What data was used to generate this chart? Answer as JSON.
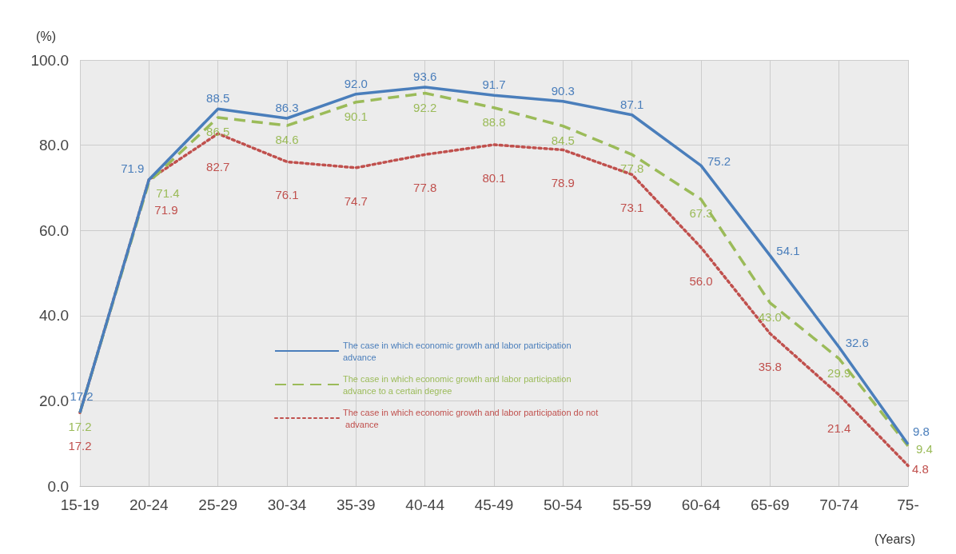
{
  "chart_data": {
    "type": "line",
    "ylabel": "(%)",
    "xlabel": "(Years)",
    "categories": [
      "15-19",
      "20-24",
      "25-29",
      "30-34",
      "35-39",
      "40-44",
      "45-49",
      "50-54",
      "55-59",
      "60-64",
      "65-69",
      "70-74",
      "75-"
    ],
    "ylim": [
      0,
      100
    ],
    "yticks": [
      {
        "value": 0,
        "label": "0.0"
      },
      {
        "value": 20,
        "label": "20.0"
      },
      {
        "value": 40,
        "label": "40.0"
      },
      {
        "value": 60,
        "label": "60.0"
      },
      {
        "value": 80,
        "label": "80.0"
      },
      {
        "value": 100,
        "label": "100.0"
      }
    ],
    "grid": true,
    "legend": "bottom",
    "marker": "none",
    "series": [
      {
        "name": "The case in which economic growth and labor participation advance",
        "color": "#4a7ebb",
        "line_style": "solid",
        "values": [
          17.2,
          71.9,
          88.5,
          86.3,
          92.0,
          93.6,
          91.7,
          90.3,
          87.1,
          75.2,
          54.1,
          32.6,
          9.8
        ],
        "value_labels": [
          "17.2",
          "71.9",
          "88.5",
          "86.3",
          "92.0",
          "93.6",
          "91.7",
          "90.3",
          "87.1",
          "75.2",
          "54.1",
          "32.6",
          "9.8"
        ]
      },
      {
        "name": "The case in which economic growth and labor participation advance to a certain degree",
        "color": "#9bbb59",
        "line_style": "dashed",
        "values": [
          17.2,
          71.4,
          86.5,
          84.6,
          90.1,
          92.2,
          88.8,
          84.5,
          77.8,
          67.3,
          43.0,
          29.9,
          9.4
        ],
        "value_labels": [
          "17.2",
          "71.4",
          "86.5",
          "84.6",
          "90.1",
          "92.2",
          "88.8",
          "84.5",
          "77.8",
          "67.3",
          "43.0",
          "29.9",
          "9.4"
        ]
      },
      {
        "name": "The case in which economic growth and labor participation do not advance",
        "color": "#c0504d",
        "line_style": "dotted",
        "values": [
          17.2,
          71.9,
          82.7,
          76.1,
          74.7,
          77.8,
          80.1,
          78.9,
          73.1,
          56.0,
          35.8,
          21.4,
          4.8
        ],
        "value_labels": [
          "17.2",
          "71.9",
          "82.7",
          "76.1",
          "74.7",
          "77.8",
          "80.1",
          "78.9",
          "73.1",
          "56.0",
          "35.8",
          "21.4",
          "4.8"
        ]
      }
    ]
  }
}
